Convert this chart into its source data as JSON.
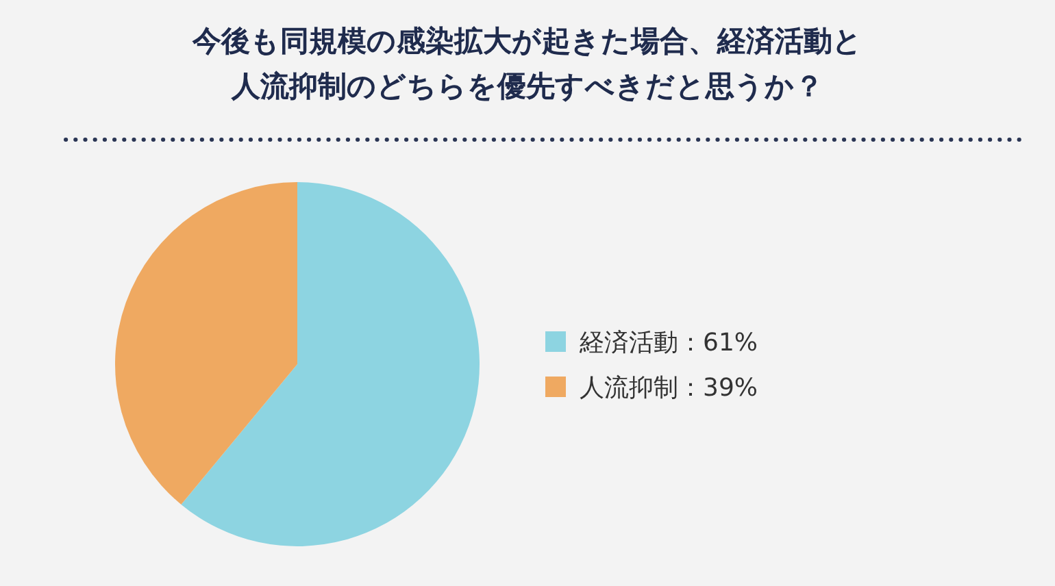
{
  "chart_data": {
    "type": "pie",
    "title": "今後も同規模の感染拡大が起きた場合、経済活動と人流抑制のどちらを優先すべきだと思うか？",
    "categories": [
      "経済活動：61%",
      "人流抑制：39%"
    ],
    "values": [
      61,
      39
    ],
    "colors": [
      "#8dd4e1",
      "#efa961"
    ],
    "legend": "right"
  }
}
